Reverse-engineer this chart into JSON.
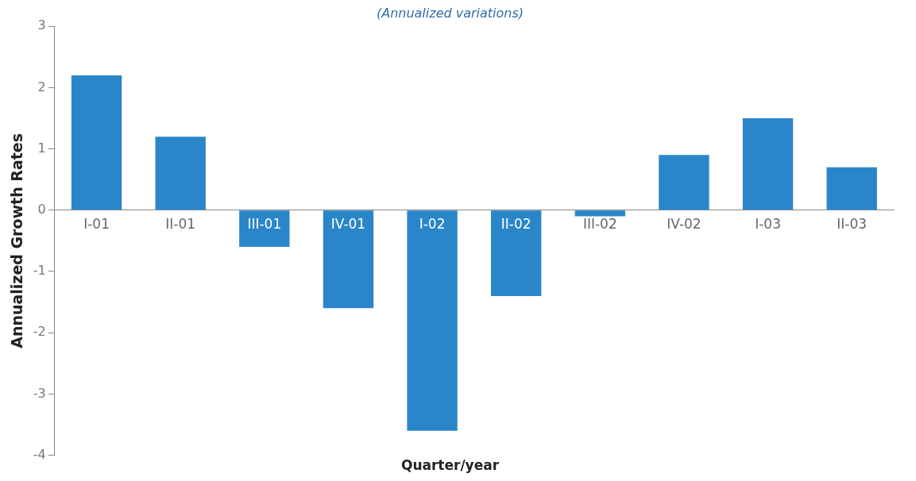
{
  "chart_data": {
    "type": "bar",
    "subtitle": "(Annualized variations)",
    "xlabel": "Quarter/year",
    "ylabel": "Annualized Growth Rates",
    "categories": [
      "I-01",
      "II-01",
      "III-01",
      "IV-01",
      "I-02",
      "II-02",
      "III-02",
      "IV-02",
      "I-03",
      "II-03"
    ],
    "values": [
      2.2,
      1.2,
      -0.6,
      -1.6,
      -3.6,
      -1.4,
      -0.1,
      0.9,
      1.5,
      0.7
    ],
    "color": "#2a86c8",
    "ylim": [
      -4,
      3
    ],
    "yticks": [
      -4,
      -3,
      -2,
      -1,
      0,
      1,
      2,
      3
    ],
    "grid": false,
    "legend": false
  }
}
